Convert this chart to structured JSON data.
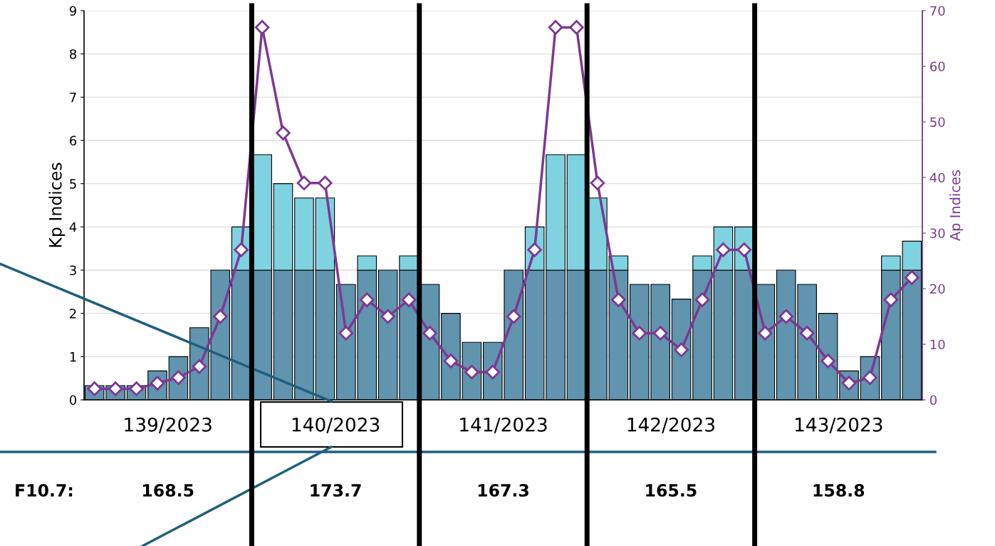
{
  "chart_data": {
    "type": "bar",
    "stacked": true,
    "categories": [
      null,
      null,
      null,
      null,
      null,
      null,
      null,
      null,
      null,
      null,
      null,
      null,
      null,
      null,
      null,
      null,
      null,
      null,
      null,
      null,
      null,
      null,
      null,
      null,
      null,
      null,
      null,
      null,
      null,
      null,
      null,
      null,
      null,
      null,
      null,
      null,
      null,
      null,
      null,
      null
    ],
    "series": [
      {
        "color": "#6194ae",
        "values": [
          0.33,
          0.33,
          0.33,
          0.67,
          1,
          1.67,
          3,
          3,
          3,
          3,
          3,
          3,
          2.67,
          3,
          3,
          3,
          2.67,
          2,
          1.33,
          1.33,
          3,
          3,
          3,
          3,
          3,
          3,
          2.67,
          2.67,
          2.33,
          3,
          3,
          3,
          2.67,
          3,
          2.67,
          2,
          0.67,
          1,
          3,
          3
        ]
      },
      {
        "color": "#7fd2e0",
        "values": [
          null,
          null,
          null,
          null,
          null,
          null,
          null,
          1,
          2.67,
          2,
          1.67,
          1.67,
          null,
          0.33,
          null,
          0.33,
          null,
          null,
          null,
          null,
          null,
          1,
          2.67,
          2.67,
          1.67,
          0.33,
          null,
          null,
          null,
          0.33,
          1,
          1,
          null,
          null,
          null,
          null,
          null,
          null,
          0.33,
          0.67
        ]
      },
      {
        "type": "line",
        "axis": "y2",
        "color": "#7e3794",
        "marker": "diamond",
        "values": [
          2,
          2,
          2,
          3,
          4,
          6,
          15,
          27,
          67,
          48,
          39,
          39,
          12,
          18,
          15,
          18,
          12,
          7,
          5,
          5,
          15,
          27,
          67,
          67,
          39,
          18,
          12,
          12,
          9,
          18,
          27,
          27,
          12,
          15,
          12,
          7,
          3,
          4,
          18,
          22
        ]
      }
    ],
    "ylabel": "Kp Indices",
    "y2label": "Ap Indices",
    "ylim": [
      0,
      9
    ],
    "yticks": [
      0,
      1,
      2,
      3,
      4,
      5,
      6,
      7,
      8,
      9
    ],
    "y2lim": [
      0,
      70
    ],
    "y2ticks": [
      0,
      10,
      20,
      30,
      40,
      50,
      60,
      70
    ],
    "grid": "y",
    "annotations": [
      "139/2023",
      "140/2023",
      "141/2023",
      "142/2023",
      "143/2023",
      "F10.7:",
      "168.5",
      "173.7",
      "167.3",
      "165.5",
      "158.8"
    ]
  }
}
